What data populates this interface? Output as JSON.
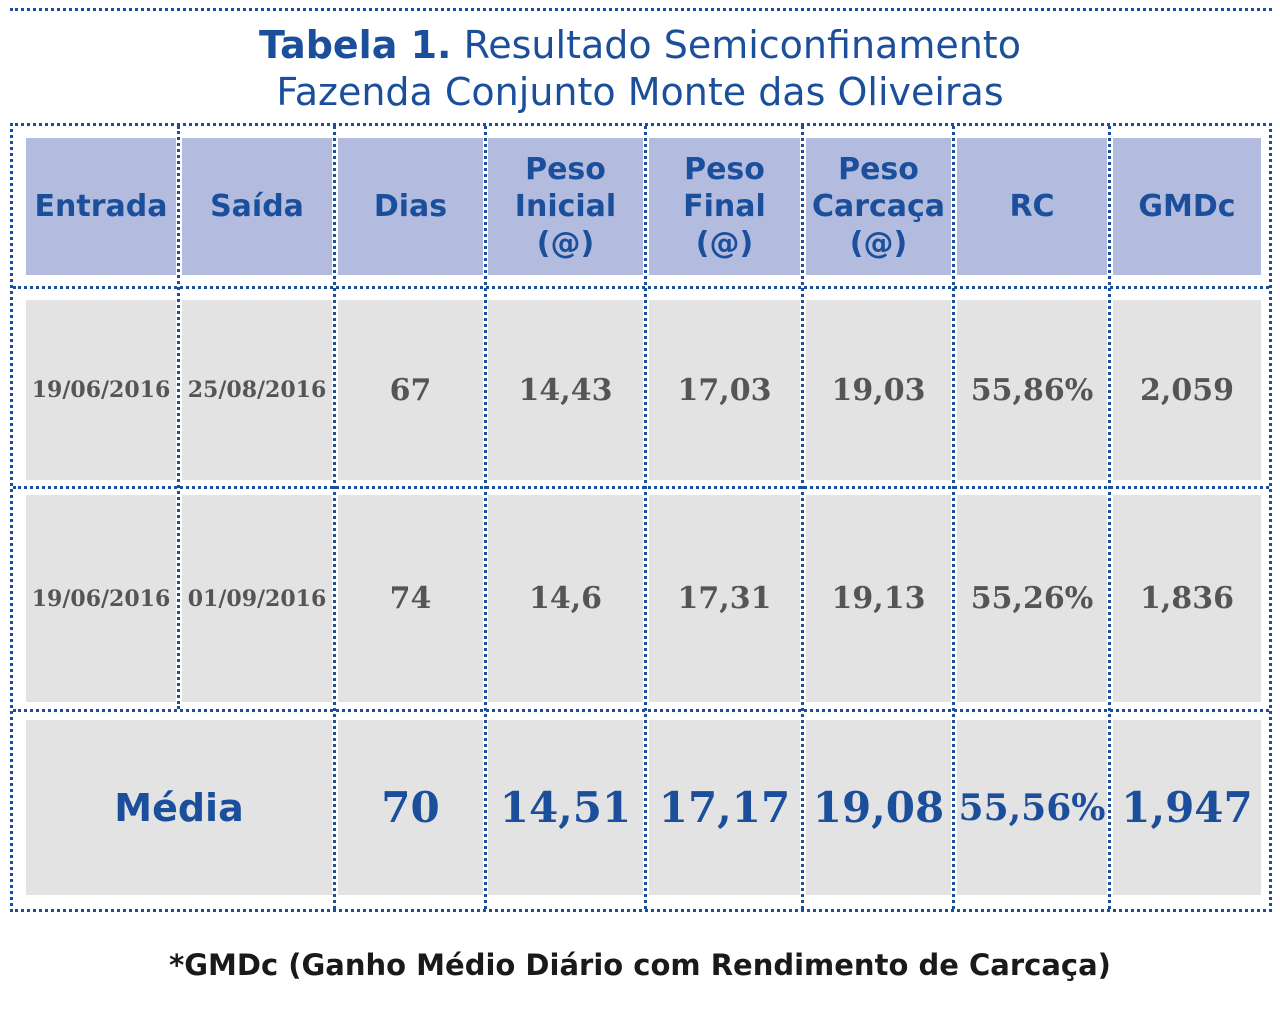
{
  "title": {
    "bold": "Tabela 1.",
    "line1": "Resultado Semiconfinamento",
    "line2": "Fazenda Conjunto Monte das Oliveiras"
  },
  "headers": [
    "Entrada",
    "Saída",
    "Dias",
    "Peso\nInicial\n(@)",
    "Peso\nFinal\n(@)",
    "Peso\nCarcaça\n(@)",
    "RC",
    "GMDc"
  ],
  "rows": [
    [
      "19/06/2016",
      "25/08/2016",
      "67",
      "14,43",
      "17,03",
      "19,03",
      "55,86%",
      "2,059"
    ],
    [
      "19/06/2016",
      "01/09/2016",
      "74",
      "14,6",
      "17,31",
      "19,13",
      "55,26%",
      "1,836"
    ]
  ],
  "average": {
    "label": "Média",
    "values": [
      "70",
      "14,51",
      "17,17",
      "19,08",
      "55,56%",
      "1,947"
    ]
  },
  "footnote": "*GMDc (Ganho Médio Diário com Rendimento de Carcaça)"
}
